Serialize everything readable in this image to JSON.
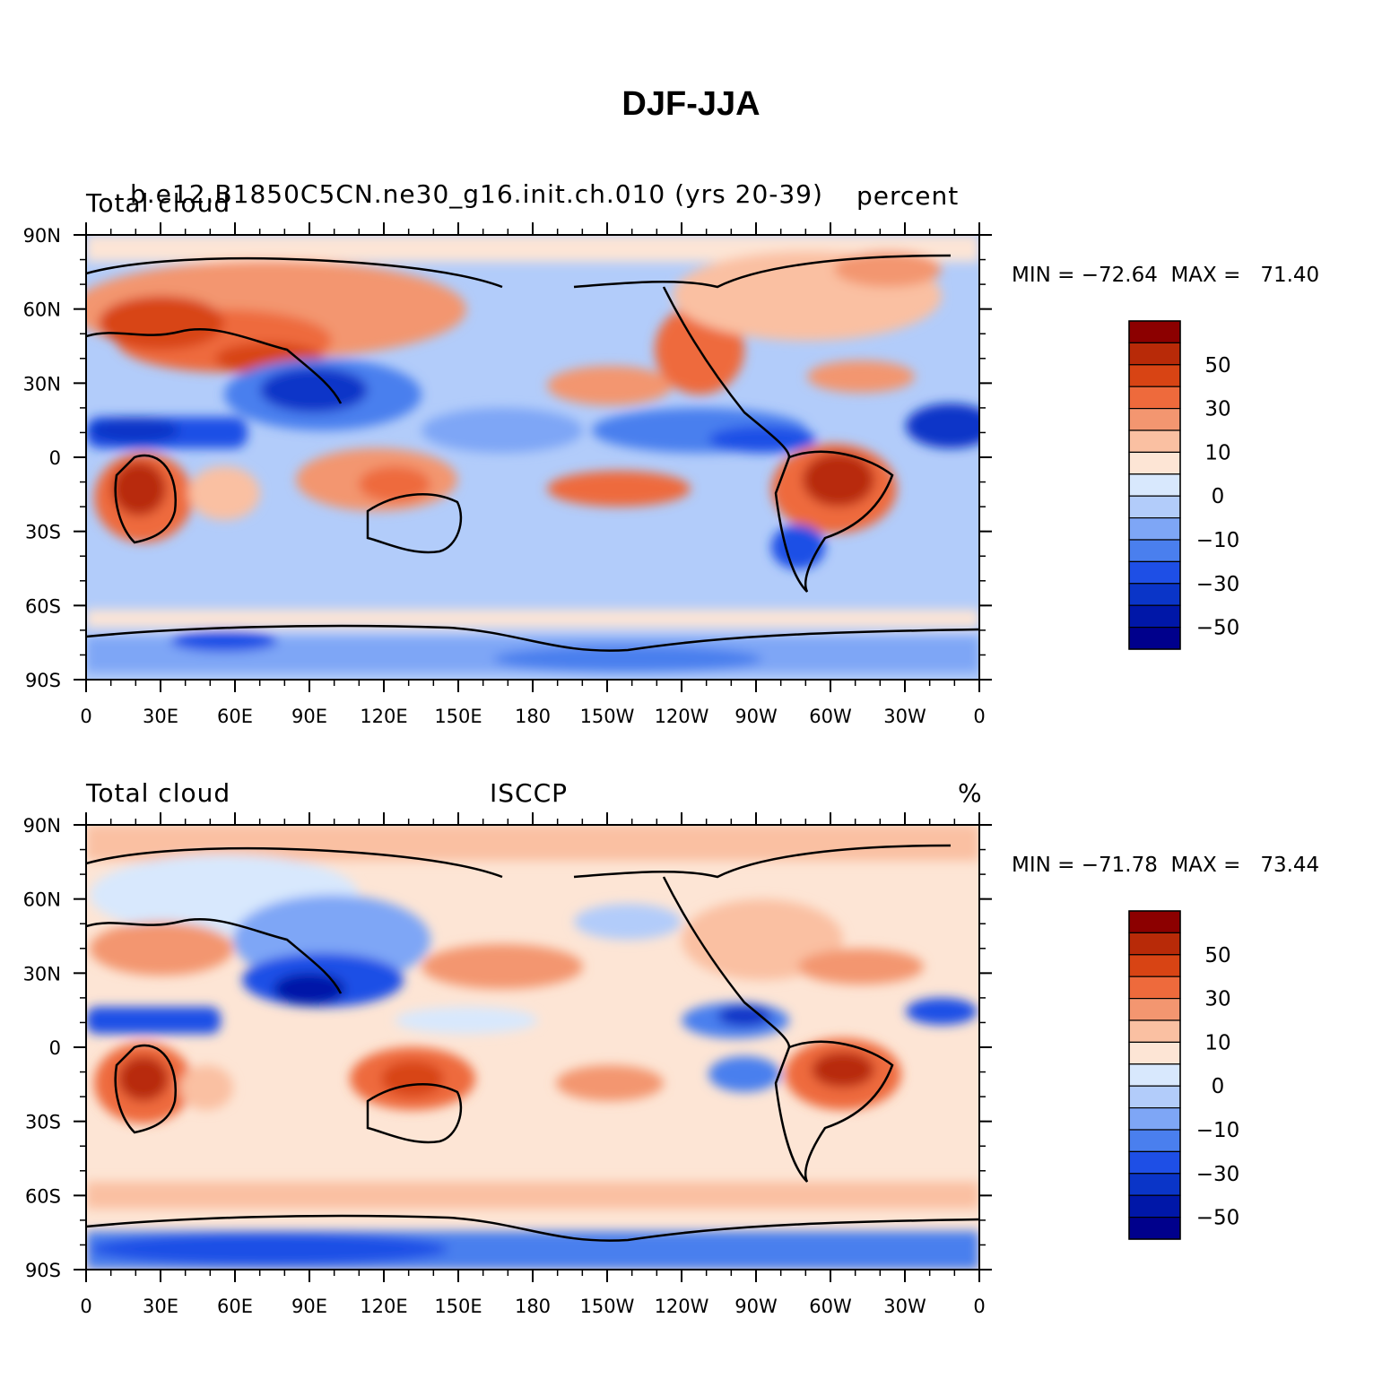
{
  "title": "DJF-JJA",
  "colors": {
    "levels": [
      "#00008c",
      "#0017a8",
      "#0a35c8",
      "#1e4fe6",
      "#4a7fee",
      "#7ea6f6",
      "#b2ccfa",
      "#d8e8fd",
      "#fde5d5",
      "#fac0a2",
      "#f39670",
      "#ee6a3c",
      "#d84414",
      "#b82a08",
      "#8c0000"
    ],
    "coast": "#000000"
  },
  "axes": {
    "lat_labels": [
      "90N",
      "60N",
      "30N",
      "0",
      "30S",
      "60S",
      "90S"
    ],
    "lon_labels": [
      "0",
      "30E",
      "60E",
      "90E",
      "120E",
      "150E",
      "180",
      "150W",
      "120W",
      "90W",
      "60W",
      "30W",
      "0"
    ]
  },
  "colorbar_labels": [
    "50",
    "30",
    "10",
    "0",
    "−10",
    "−30",
    "−50"
  ],
  "panels": [
    {
      "left_label": "Total cloud",
      "center_label": "b.e12.B1850C5CN.ne30_g16.init.ch.010 (yrs 20-39)",
      "right_label": "percent",
      "minmax": "MIN = −72.64  MAX =   71.40"
    },
    {
      "left_label": "Total cloud",
      "center_label": "ISCCP",
      "right_label": "%",
      "minmax": "MIN = −71.78  MAX =   73.44"
    }
  ]
}
